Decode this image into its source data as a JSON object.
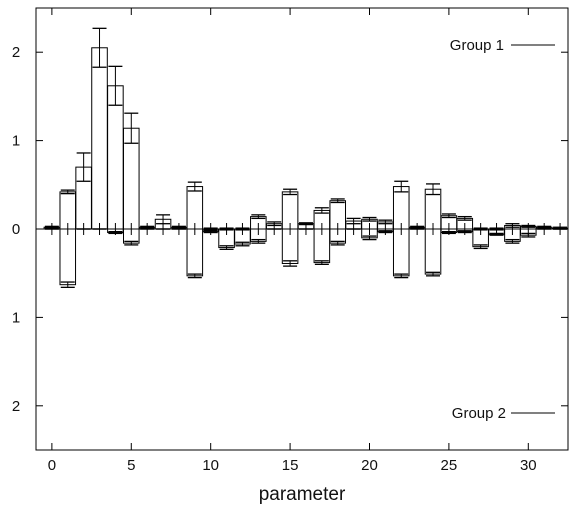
{
  "chart_data": {
    "type": "bar",
    "subtype": "mirrored bar chart with error bars",
    "title": "",
    "xlabel": "parameter",
    "ylabel": "",
    "xlim": [
      -1,
      32.5
    ],
    "xticks": [
      0,
      5,
      10,
      15,
      20,
      25,
      30
    ],
    "ylim": [
      -2.5,
      2.5
    ],
    "yticks": [
      {
        "value": 2,
        "label": "2"
      },
      {
        "value": 1,
        "label": "1"
      },
      {
        "value": 0,
        "label": "0"
      },
      {
        "value": -1,
        "label": "1"
      },
      {
        "value": -2,
        "label": "2"
      }
    ],
    "grid": false,
    "legend_position": "right",
    "x": [
      0,
      1,
      2,
      3,
      4,
      5,
      6,
      7,
      8,
      9,
      10,
      11,
      12,
      13,
      14,
      15,
      16,
      17,
      18,
      19,
      20,
      21,
      22,
      23,
      24,
      25,
      26,
      27,
      28,
      29,
      30,
      31,
      32
    ],
    "series": [
      {
        "name": "Group 1",
        "direction": "up",
        "color": "#000000",
        "values": [
          0.02,
          0.42,
          0.7,
          2.05,
          1.62,
          1.14,
          0.02,
          0.11,
          0.02,
          0.48,
          0.0,
          0.0,
          0.0,
          0.14,
          0.06,
          0.42,
          0.06,
          0.21,
          0.32,
          0.09,
          0.11,
          0.08,
          0.48,
          0.02,
          0.45,
          0.15,
          0.12,
          0.0,
          0.0,
          0.04,
          0.03,
          0.02,
          0.01
        ],
        "errors": [
          0.01,
          0.02,
          0.16,
          0.22,
          0.22,
          0.17,
          0.01,
          0.05,
          0.01,
          0.05,
          0.01,
          0.01,
          0.01,
          0.02,
          0.02,
          0.03,
          0.01,
          0.03,
          0.02,
          0.03,
          0.02,
          0.02,
          0.06,
          0.01,
          0.06,
          0.02,
          0.02,
          0.01,
          0.01,
          0.02,
          0.01,
          0.01,
          0.01
        ]
      },
      {
        "name": "Group 2",
        "direction": "down",
        "color": "#000000",
        "values": [
          0.0,
          0.63,
          0.0,
          0.0,
          0.04,
          0.16,
          0.0,
          0.0,
          0.0,
          0.53,
          0.03,
          0.21,
          0.17,
          0.14,
          0.0,
          0.39,
          0.0,
          0.38,
          0.16,
          0.0,
          0.1,
          0.03,
          0.53,
          0.0,
          0.51,
          0.04,
          0.03,
          0.2,
          0.06,
          0.14,
          0.07,
          0.0,
          0.0
        ],
        "errors": [
          0.0,
          0.03,
          0.0,
          0.0,
          0.01,
          0.02,
          0.0,
          0.0,
          0.0,
          0.02,
          0.01,
          0.02,
          0.02,
          0.02,
          0.0,
          0.03,
          0.0,
          0.02,
          0.02,
          0.0,
          0.02,
          0.01,
          0.02,
          0.0,
          0.02,
          0.01,
          0.01,
          0.02,
          0.01,
          0.02,
          0.02,
          0.0,
          0.0
        ]
      }
    ]
  }
}
